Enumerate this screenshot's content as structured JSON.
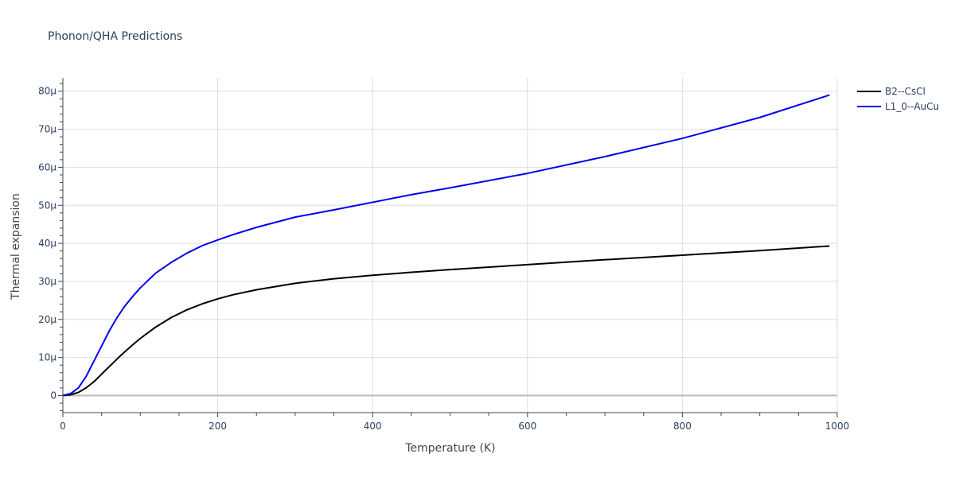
{
  "chart_data": {
    "type": "line",
    "title": "Phonon/QHA Predictions",
    "xlabel": "Temperature (K)",
    "ylabel": "Thermal expansion",
    "xlim": [
      0,
      1000
    ],
    "ylim": [
      -4.5e-06,
      8.35e-05
    ],
    "x_ticks": [
      0,
      200,
      400,
      600,
      800,
      1000
    ],
    "x_tick_labels": [
      "0",
      "200",
      "400",
      "600",
      "800",
      "1000"
    ],
    "y_ticks": [
      0,
      1e-05,
      2e-05,
      3e-05,
      4e-05,
      5e-05,
      6e-05,
      7e-05,
      8e-05
    ],
    "y_tick_labels": [
      "0",
      "10μ",
      "20μ",
      "30μ",
      "40μ",
      "50μ",
      "60μ",
      "70μ",
      "80μ"
    ],
    "grid": true,
    "legend_position": "top-right",
    "series": [
      {
        "name": "B2--CsCl",
        "color": "#000000",
        "x": [
          0,
          10,
          20,
          30,
          40,
          50,
          60,
          70,
          80,
          90,
          100,
          120,
          140,
          160,
          180,
          200,
          220,
          250,
          300,
          350,
          400,
          450,
          500,
          600,
          700,
          800,
          900,
          990
        ],
        "y": [
          0,
          2e-07,
          8e-07,
          2e-06,
          3.6e-06,
          5.6e-06,
          7.6e-06,
          9.6e-06,
          1.15e-05,
          1.33e-05,
          1.5e-05,
          1.8e-05,
          2.05e-05,
          2.25e-05,
          2.41e-05,
          2.54e-05,
          2.65e-05,
          2.78e-05,
          2.95e-05,
          3.07e-05,
          3.16e-05,
          3.24e-05,
          3.31e-05,
          3.44e-05,
          3.57e-05,
          3.69e-05,
          3.81e-05,
          3.93e-05
        ]
      },
      {
        "name": "L1_0--AuCu",
        "color": "#0000ee",
        "x": [
          0,
          10,
          20,
          30,
          40,
          50,
          60,
          70,
          80,
          90,
          100,
          120,
          140,
          160,
          180,
          200,
          220,
          250,
          300,
          350,
          400,
          450,
          500,
          600,
          700,
          800,
          900,
          990
        ],
        "y": [
          0,
          5e-07,
          2e-06,
          5e-06,
          9e-06,
          1.3e-05,
          1.7e-05,
          2.05e-05,
          2.35e-05,
          2.6e-05,
          2.83e-05,
          3.22e-05,
          3.5e-05,
          3.74e-05,
          3.94e-05,
          4.09e-05,
          4.23e-05,
          4.42e-05,
          4.69e-05,
          4.88e-05,
          5.08e-05,
          5.28e-05,
          5.46e-05,
          5.84e-05,
          6.28e-05,
          6.76e-05,
          7.31e-05,
          7.9e-05
        ]
      }
    ]
  }
}
